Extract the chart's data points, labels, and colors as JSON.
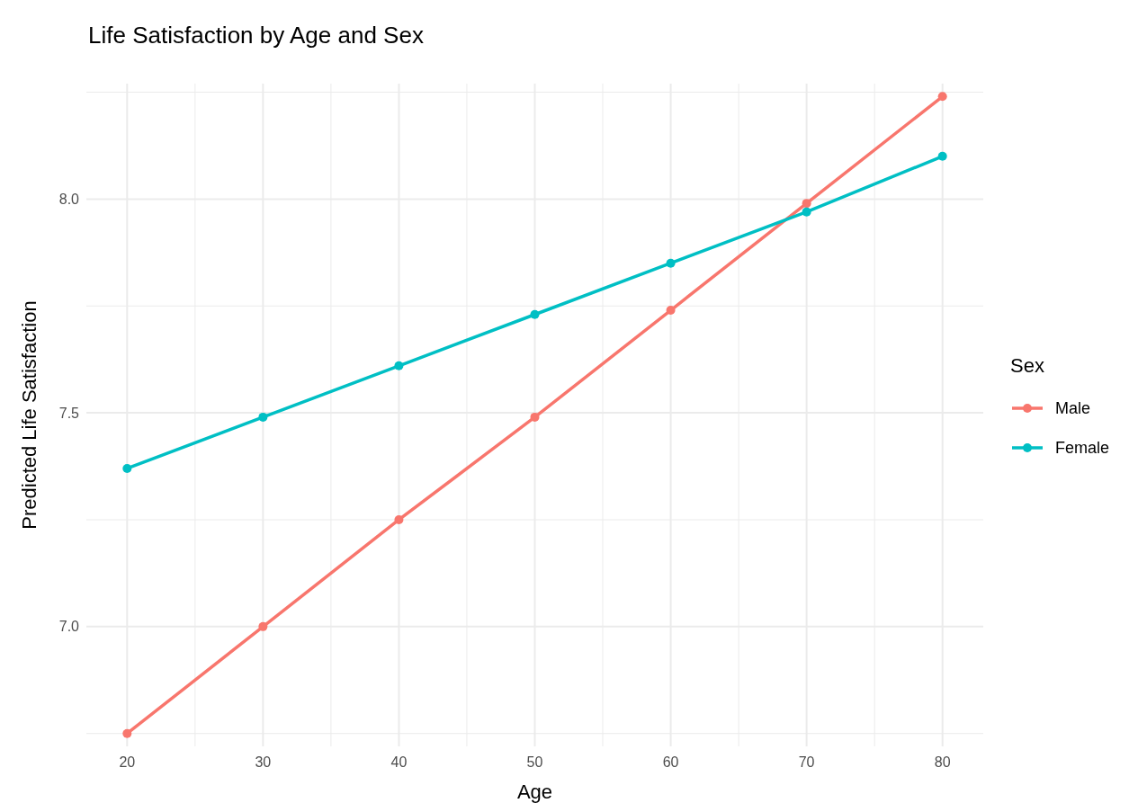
{
  "chart_data": {
    "type": "line",
    "title": "Life Satisfaction by Age and Sex",
    "xlabel": "Age",
    "ylabel": "Predicted Life Satisfaction",
    "legend_title": "Sex",
    "x": [
      20,
      30,
      40,
      50,
      60,
      70,
      80
    ],
    "series": [
      {
        "name": "Male",
        "color": "#f8766d",
        "values": [
          6.75,
          7.0,
          7.25,
          7.49,
          7.74,
          7.99,
          8.24
        ]
      },
      {
        "name": "Female",
        "color": "#00bfc4",
        "values": [
          7.37,
          7.49,
          7.61,
          7.73,
          7.85,
          7.97,
          8.1
        ]
      }
    ],
    "xlim": [
      17,
      83
    ],
    "xticks": [
      20,
      {
        "value": 25,
        "label": null
      },
      30,
      {
        "value": 35,
        "label": null
      },
      40,
      {
        "value": 45,
        "label": null
      },
      50,
      {
        "value": 55,
        "label": null
      },
      60,
      {
        "value": 65,
        "label": null
      },
      70,
      {
        "value": 75,
        "label": null
      },
      80
    ],
    "ylim": [
      6.72,
      8.27
    ],
    "yticks": [
      {
        "value": 6.75,
        "label": null
      },
      {
        "value": 7,
        "label": "7.0"
      },
      {
        "value": 7.25,
        "label": null
      },
      {
        "value": 7.5,
        "label": "7.5"
      },
      {
        "value": 7.75,
        "label": null
      },
      {
        "value": 8,
        "label": "8.0"
      },
      {
        "value": 8.25,
        "label": null
      }
    ],
    "grid": true,
    "legend": "right",
    "marker": "circle",
    "line_style": "solid"
  }
}
